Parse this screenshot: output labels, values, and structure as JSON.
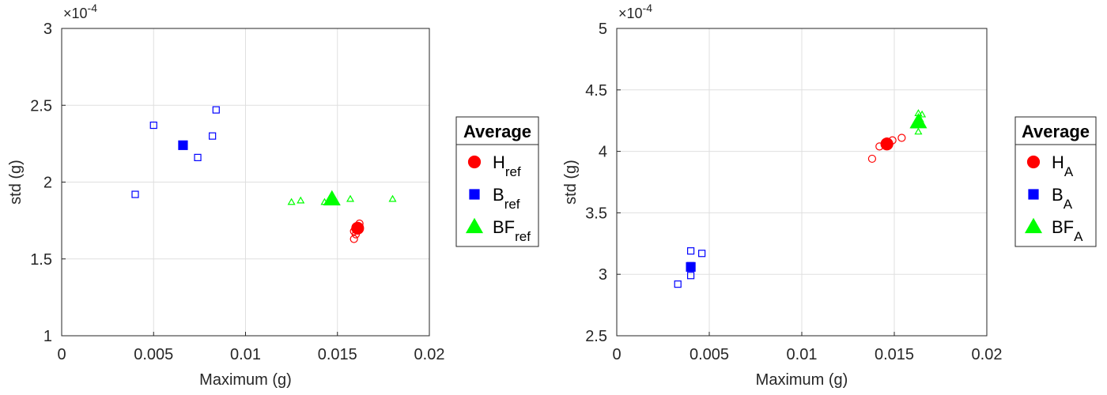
{
  "chart_data": [
    {
      "type": "scatter",
      "title": "",
      "xlabel": "Maximum (g)",
      "ylabel": "std (g)",
      "xlim": [
        0,
        0.02
      ],
      "ylim": [
        1,
        3
      ],
      "y_scale_note": "×10^-4",
      "x_ticks": [
        "0",
        "0.005",
        "0.01",
        "0.015",
        "0.02"
      ],
      "y_ticks": [
        "1",
        "1.5",
        "2",
        "2.5",
        "3"
      ],
      "grid": true,
      "legend": {
        "title": "Average",
        "placement": "outside-right",
        "entries": [
          {
            "main": "H",
            "sub": "ref",
            "marker": "circle",
            "color": "#ff0000"
          },
          {
            "main": "B",
            "sub": "ref",
            "marker": "square",
            "color": "#0000ff"
          },
          {
            "main": "BF",
            "sub": "ref",
            "marker": "triangle",
            "color": "#00ff00"
          }
        ]
      },
      "series": [
        {
          "name": "H_ref",
          "marker": "circle",
          "color": "#ff0000",
          "points": [
            [
              0.016,
              1.71
            ],
            [
              0.0159,
              1.68
            ],
            [
              0.0162,
              1.73
            ],
            [
              0.016,
              1.66
            ],
            [
              0.0159,
              1.63
            ]
          ],
          "average": [
            0.0161,
            1.7
          ]
        },
        {
          "name": "B_ref",
          "marker": "square",
          "color": "#0000ff",
          "points": [
            [
              0.004,
              1.92
            ],
            [
              0.005,
              2.37
            ],
            [
              0.0074,
              2.16
            ],
            [
              0.0082,
              2.3
            ],
            [
              0.0084,
              2.47
            ]
          ],
          "average": [
            0.0066,
            2.24
          ]
        },
        {
          "name": "BF_ref",
          "marker": "triangle",
          "color": "#00ff00",
          "points": [
            [
              0.0125,
              1.87
            ],
            [
              0.013,
              1.88
            ],
            [
              0.0143,
              1.87
            ],
            [
              0.0157,
              1.89
            ],
            [
              0.018,
              1.89
            ]
          ],
          "average": [
            0.0147,
            1.89
          ]
        }
      ]
    },
    {
      "type": "scatter",
      "title": "",
      "xlabel": "Maximum (g)",
      "ylabel": "std (g)",
      "xlim": [
        0,
        0.02
      ],
      "ylim": [
        2.5,
        5
      ],
      "y_scale_note": "×10^-4",
      "x_ticks": [
        "0",
        "0.005",
        "0.01",
        "0.015",
        "0.02"
      ],
      "y_ticks": [
        "2.5",
        "3",
        "3.5",
        "4",
        "4.5",
        "5"
      ],
      "grid": true,
      "legend": {
        "title": "Average",
        "placement": "outside-right",
        "entries": [
          {
            "main": "H",
            "sub": "A",
            "marker": "circle",
            "color": "#ff0000"
          },
          {
            "main": "B",
            "sub": "A",
            "marker": "square",
            "color": "#0000ff"
          },
          {
            "main": "BF",
            "sub": "A",
            "marker": "triangle",
            "color": "#00ff00"
          }
        ]
      },
      "series": [
        {
          "name": "H_A",
          "marker": "circle",
          "color": "#ff0000",
          "points": [
            [
              0.0138,
              3.94
            ],
            [
              0.0142,
              4.04
            ],
            [
              0.0146,
              4.08
            ],
            [
              0.0149,
              4.09
            ],
            [
              0.0154,
              4.11
            ]
          ],
          "average": [
            0.0146,
            4.06
          ]
        },
        {
          "name": "B_A",
          "marker": "square",
          "color": "#0000ff",
          "points": [
            [
              0.0033,
              2.92
            ],
            [
              0.004,
              2.99
            ],
            [
              0.004,
              3.19
            ],
            [
              0.0046,
              3.17
            ],
            [
              0.004,
              3.07
            ]
          ],
          "average": [
            0.004,
            3.06
          ]
        },
        {
          "name": "BF_A",
          "marker": "triangle",
          "color": "#00ff00",
          "points": [
            [
              0.0161,
              4.21
            ],
            [
              0.0163,
              4.16
            ],
            [
              0.0163,
              4.31
            ],
            [
              0.0165,
              4.3
            ],
            [
              0.0164,
              4.26
            ]
          ],
          "average": [
            0.0163,
            4.24
          ]
        }
      ]
    }
  ]
}
